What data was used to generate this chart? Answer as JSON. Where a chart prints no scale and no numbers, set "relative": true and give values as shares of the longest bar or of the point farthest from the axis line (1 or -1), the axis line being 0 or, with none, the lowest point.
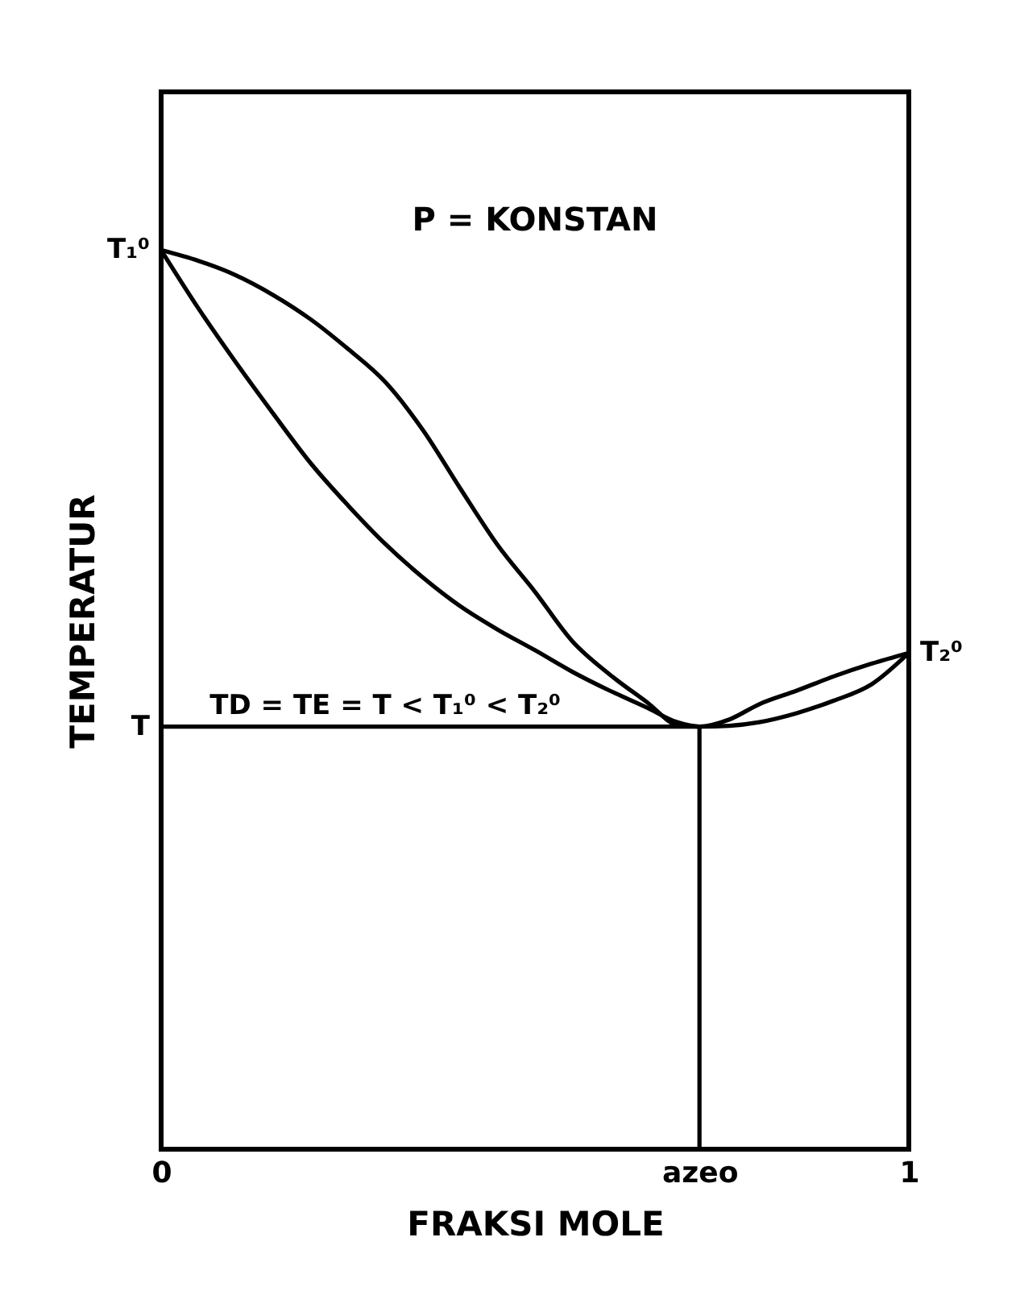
{
  "chart_data": {
    "type": "line",
    "xlabel": "FRAKSI MOLE",
    "ylabel": "TEMPERATUR",
    "relative": true,
    "xlim": [
      0,
      1
    ],
    "xticks": [
      0,
      {
        "value": 0.72,
        "label": "azeo"
      },
      1
    ],
    "series": [
      {
        "color": "#000000",
        "x": [
          0,
          0.05,
          0.1,
          0.15,
          0.2,
          0.25,
          0.3,
          0.35,
          0.4,
          0.45,
          0.5,
          0.55,
          0.6,
          0.65,
          0.69,
          0.72,
          0.76,
          0.8,
          0.85,
          0.9,
          0.95,
          1
        ],
        "values": [
          1,
          0.935,
          0.875,
          0.818,
          0.763,
          0.716,
          0.673,
          0.636,
          0.604,
          0.578,
          0.555,
          0.531,
          0.51,
          0.491,
          0.475,
          0.47,
          0.471,
          0.475,
          0.485,
          0.499,
          0.517,
          0.552
        ]
      },
      {
        "color": "#000000",
        "x": [
          0,
          0.05,
          0.1,
          0.15,
          0.2,
          0.25,
          0.3,
          0.35,
          0.4,
          0.45,
          0.5,
          0.55,
          0.6,
          0.65,
          0.69,
          0.72,
          0.76,
          0.8,
          0.85,
          0.9,
          0.95,
          1
        ],
        "values": [
          1,
          0.988,
          0.972,
          0.95,
          0.923,
          0.89,
          0.853,
          0.8,
          0.735,
          0.672,
          0.62,
          0.565,
          0.528,
          0.497,
          0.472,
          0.47,
          0.478,
          0.495,
          0.51,
          0.526,
          0.54,
          0.552
        ]
      },
      {
        "color": "#000000",
        "x": [
          0,
          0.72
        ],
        "values": [
          0.47,
          0.47
        ]
      },
      {
        "color": "#000000",
        "x": [
          0.72,
          0.72
        ],
        "values": [
          0,
          0.47
        ]
      }
    ],
    "annotations": [
      "P = KONSTAN",
      {
        "text": "T₁⁰",
        "x": 0,
        "y": 1
      },
      {
        "text": "T₂⁰",
        "x": 1,
        "y": 0.552
      },
      {
        "text": "T",
        "x": 0,
        "y": 0.47
      },
      {
        "text": "TD = TE = T < T₁⁰ < T₂⁰",
        "x": 0.065,
        "y": 0.47
      }
    ]
  }
}
